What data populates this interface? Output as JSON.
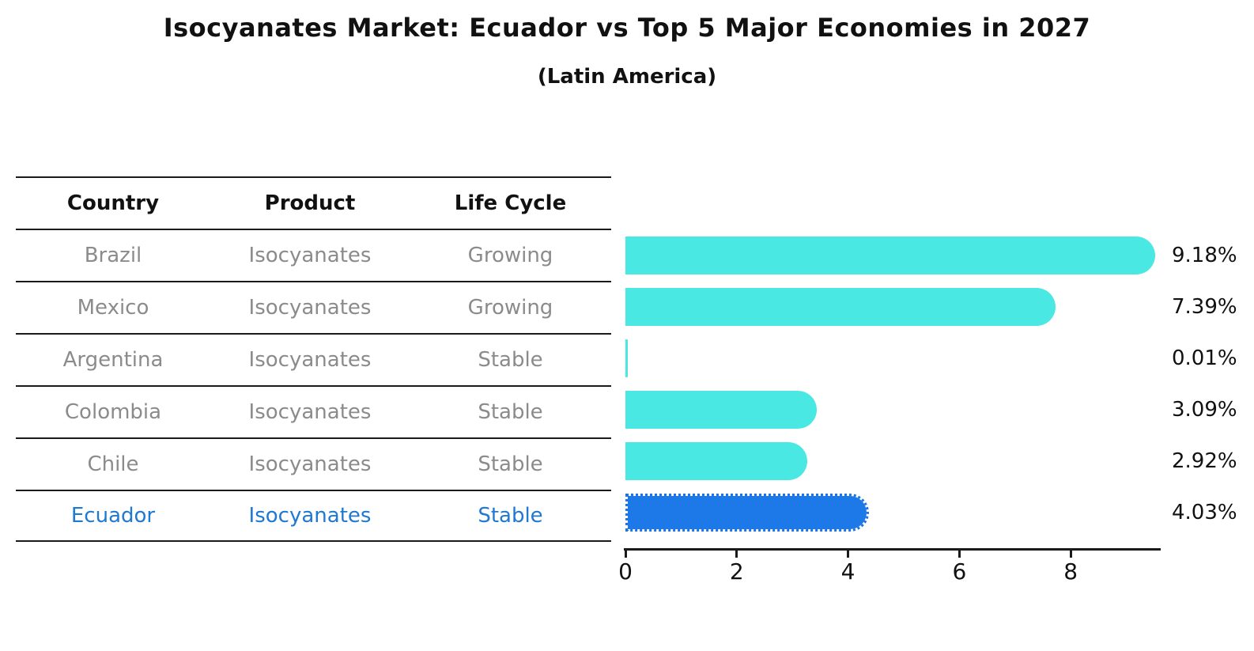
{
  "header": {
    "title": "Isocyanates Market: Ecuador vs Top 5 Major Economies in 2027",
    "subtitle": "(Latin America)"
  },
  "table": {
    "headers": [
      "Country",
      "Product",
      "Life Cycle"
    ],
    "rows": [
      {
        "country": "Brazil",
        "product": "Isocyanates",
        "life_cycle": "Growing",
        "highlight": false
      },
      {
        "country": "Mexico",
        "product": "Isocyanates",
        "life_cycle": "Growing",
        "highlight": false
      },
      {
        "country": "Argentina",
        "product": "Isocyanates",
        "life_cycle": "Stable",
        "highlight": false
      },
      {
        "country": "Colombia",
        "product": "Isocyanates",
        "life_cycle": "Stable",
        "highlight": false
      },
      {
        "country": "Chile",
        "product": "Isocyanates",
        "life_cycle": "Stable",
        "highlight": false
      },
      {
        "country": "Ecuador",
        "product": "Isocyanates",
        "life_cycle": "Stable",
        "highlight": true
      }
    ]
  },
  "chart_data": {
    "type": "bar",
    "orientation": "horizontal",
    "title": "Isocyanates Market: Ecuador vs Top 5 Major Economies in 2027",
    "subtitle": "(Latin America)",
    "categories": [
      "Brazil",
      "Mexico",
      "Argentina",
      "Colombia",
      "Chile",
      "Ecuador"
    ],
    "values": [
      9.18,
      7.39,
      0.01,
      3.09,
      2.92,
      4.03
    ],
    "value_labels": [
      "9.18%",
      "7.39%",
      "0.01%",
      "3.09%",
      "2.92%",
      "4.03%"
    ],
    "x_ticks": [
      0,
      2,
      4,
      6,
      8
    ],
    "x_tick_labels": [
      "0",
      "2",
      "4",
      "6",
      "8"
    ],
    "xlim": [
      0,
      9.6
    ],
    "grid": false,
    "legend_position": "none",
    "bar_color": "#49e8e3",
    "highlight_bar_color": "#1e79e8",
    "highlight_index": 5,
    "highlight_text_color": "#1f78d1",
    "row_text_color": "#8b8b8b"
  }
}
